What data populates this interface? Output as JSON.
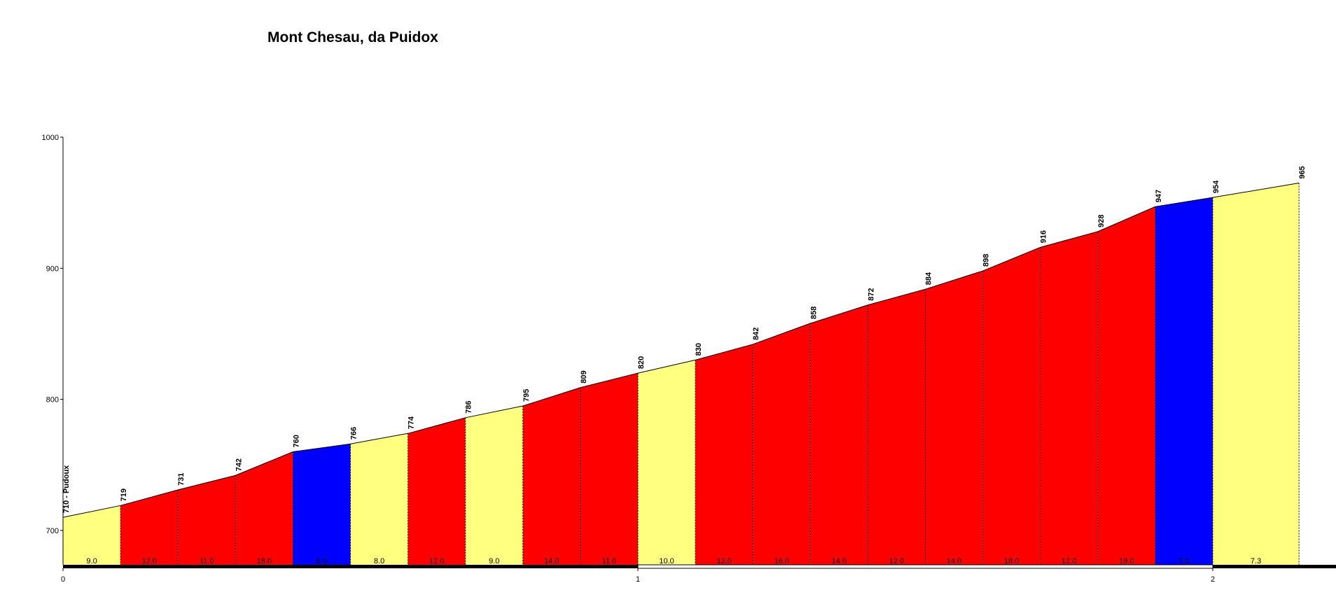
{
  "chart_data": {
    "type": "area",
    "title": "Mont Chesau, da Puidox",
    "xlabel": "",
    "ylabel": "",
    "xlim": [
      0,
      2.15
    ],
    "ylim": [
      673,
      1000
    ],
    "y_ticks": [
      "700",
      "800",
      "900",
      "1000"
    ],
    "x_ticks": [
      "0",
      "1",
      "2"
    ],
    "grid": false,
    "segment_length_km": 0.1,
    "altitudes": [
      710,
      719,
      731,
      742,
      760,
      766,
      774,
      786,
      795,
      809,
      820,
      830,
      842,
      858,
      872,
      884,
      898,
      916,
      928,
      947,
      954,
      965
    ],
    "altitude_labels": [
      "710 - Pudoux",
      "719",
      "731",
      "742",
      "760",
      "766",
      "774",
      "786",
      "795",
      "809",
      "820",
      "830",
      "842",
      "858",
      "872",
      "884",
      "898",
      "916",
      "928",
      "947",
      "954",
      "965"
    ],
    "gradient_labels": [
      "9.0",
      "12.0",
      "11.0",
      "18.0",
      "6.0",
      "8.0",
      "12.0",
      "9.0",
      "14.0",
      "11.0",
      "10.0",
      "12.0",
      "16.0",
      "14.0",
      "12.0",
      "14.0",
      "18.0",
      "12.0",
      "19.0",
      "7.0",
      "7.3"
    ],
    "segment_colors": [
      "yellow",
      "red",
      "red",
      "red",
      "blue",
      "yellow",
      "red",
      "yellow",
      "red",
      "red",
      "yellow",
      "red",
      "red",
      "red",
      "red",
      "red",
      "red",
      "red",
      "red",
      "blue",
      "yellow"
    ],
    "colors": {
      "yellow": "#ffff80",
      "red": "#ff0000",
      "blue": "#0000ff"
    }
  }
}
